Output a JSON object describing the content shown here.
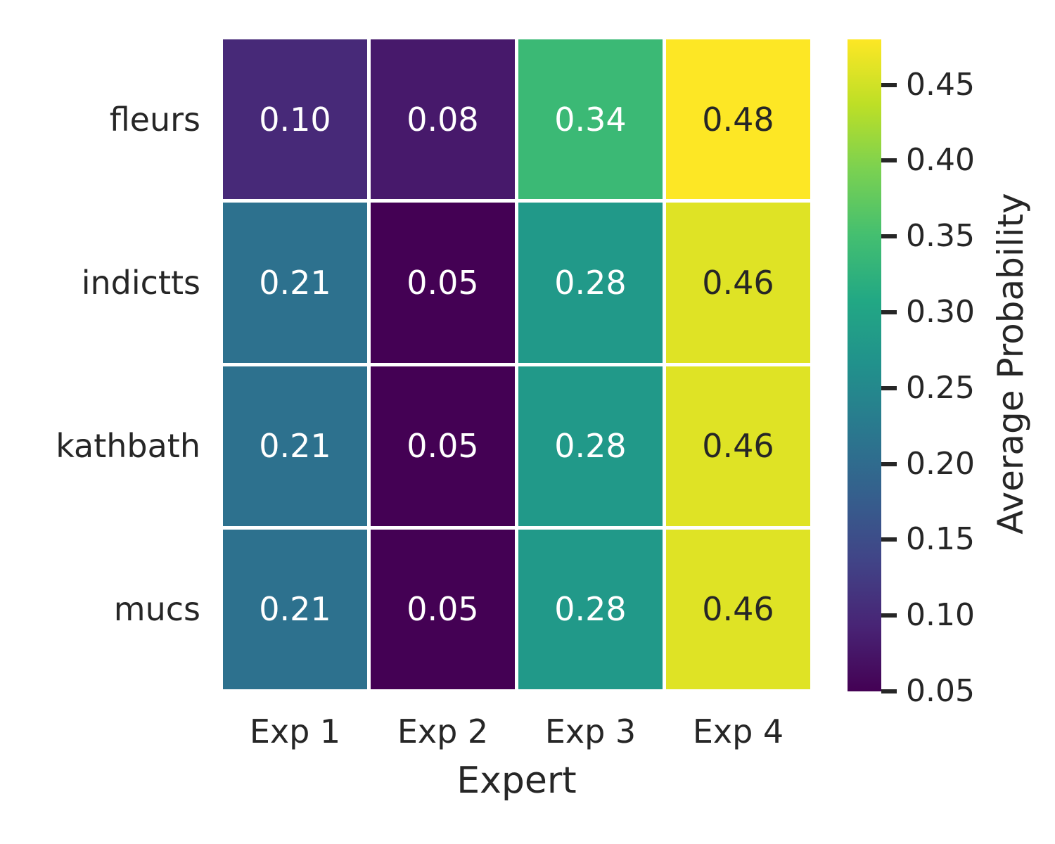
{
  "chart_data": {
    "type": "heatmap",
    "title": "",
    "rows": [
      "fleurs",
      "indictts",
      "kathbath",
      "mucs"
    ],
    "columns": [
      "Exp 1",
      "Exp 2",
      "Exp 3",
      "Exp 4"
    ],
    "values": [
      [
        0.1,
        0.08,
        0.34,
        0.48
      ],
      [
        0.21,
        0.05,
        0.28,
        0.46
      ],
      [
        0.21,
        0.05,
        0.28,
        0.46
      ],
      [
        0.21,
        0.05,
        0.28,
        0.46
      ]
    ],
    "xlabel": "Expert",
    "ylabel": "",
    "grid": false,
    "legend_position": "right",
    "colorbar": {
      "label": "Average Probability",
      "vmin": 0.05,
      "vmax": 0.48,
      "tick_values": [
        0.45,
        0.4,
        0.35,
        0.3,
        0.25,
        0.2,
        0.15,
        0.1,
        0.05
      ],
      "tick_labels": [
        "0.45",
        "0.40",
        "0.35",
        "0.30",
        "0.25",
        "0.20",
        "0.15",
        "0.10",
        "0.05"
      ]
    },
    "colormap": {
      "name": "viridis",
      "stops": [
        "#440154",
        "#482475",
        "#414487",
        "#355f8d",
        "#2a788e",
        "#21918c",
        "#22a884",
        "#44bf70",
        "#7ad151",
        "#bddf26",
        "#fde725"
      ]
    },
    "colors": {
      "background": "#ffffff",
      "cell_gap": "#ffffff",
      "axis_text": "#262626",
      "annotation_light": "#ffffff",
      "annotation_dark": "#262626",
      "tick_mark": "#262626"
    }
  }
}
